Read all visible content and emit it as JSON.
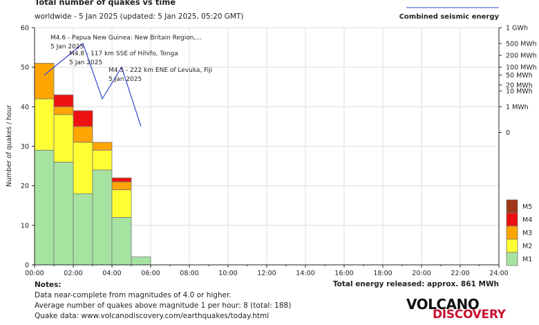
{
  "title": "Total number of quakes vs time",
  "subtitle": "worldwide -  5 Jan 2025 (updated: 5 Jan 2025, 05:20 GMT)",
  "legend_line_label": "Combined seismic energy",
  "ylabel": "Number of quakes / hour",
  "colors": {
    "M1": "#a6e3a1",
    "M2": "#ffff33",
    "M3": "#ffa500",
    "M4": "#ee1111",
    "M5": "#a0361a",
    "energy_line": "#3344cc",
    "grid": "#dddddd"
  },
  "chart_data": {
    "type": "bar",
    "stacked": true,
    "x_tick_labels": [
      "00:00",
      "02:00",
      "04:00",
      "06:00",
      "08:00",
      "10:00",
      "12:00",
      "14:00",
      "16:00",
      "18:00",
      "20:00",
      "22:00",
      "24:00"
    ],
    "xlim": [
      0,
      24
    ],
    "ylim": [
      0,
      60
    ],
    "y_ticks": [
      0,
      10,
      20,
      30,
      40,
      50,
      60
    ],
    "bar_width_hours": 1,
    "bars": [
      {
        "hour": 0,
        "M1": 29,
        "M2": 13,
        "M3": 9,
        "M4": 0,
        "M5": 0
      },
      {
        "hour": 1,
        "M1": 26,
        "M2": 12,
        "M3": 2,
        "M4": 3,
        "M5": 0
      },
      {
        "hour": 2,
        "M1": 18,
        "M2": 13,
        "M3": 4,
        "M4": 4,
        "M5": 0
      },
      {
        "hour": 3,
        "M1": 24,
        "M2": 5,
        "M3": 2,
        "M4": 0,
        "M5": 0
      },
      {
        "hour": 4,
        "M1": 12,
        "M2": 7,
        "M3": 2,
        "M4": 1,
        "M5": 0
      },
      {
        "hour": 5,
        "M1": 2,
        "M2": 0,
        "M3": 0,
        "M4": 0,
        "M5": 0
      }
    ],
    "magnitude_legend": [
      "M5",
      "M4",
      "M3",
      "M2",
      "M1"
    ],
    "energy_axis_labels": [
      "1 GWh",
      "500 MWh",
      "200 MWh",
      "100 MWh",
      "50 MWh",
      "20 MWh",
      "10 MWh",
      "1 MWh",
      "0"
    ],
    "energy_series": [
      {
        "hour": 0.5,
        "y_on_count_axis": 48
      },
      {
        "hour": 2.5,
        "y_on_count_axis": 56
      },
      {
        "hour": 3.5,
        "y_on_count_axis": 42
      },
      {
        "hour": 4.5,
        "y_on_count_axis": 50
      },
      {
        "hour": 5.5,
        "y_on_count_axis": 35
      }
    ],
    "annotations": [
      {
        "text": "M4.6 - Papua New Guinea: New Britain Region,...",
        "date": "5 Jan 2025"
      },
      {
        "text": "M4.8 - 117 km SSE of Hihifo, Tonga",
        "date": "5 Jan 2025"
      },
      {
        "text": "M4.5 - 222 km ENE of Levuka, Fiji",
        "date": "5 Jan 2025"
      }
    ]
  },
  "footer": {
    "notes_heading": "Notes:",
    "note1": "Data near-complete from magnitudes of 4.0 or higher.",
    "note2": "Average number of quakes above magnitude 1 per hour: 8 (total: 188)",
    "note3": "Quake data: www.volcanodiscovery.com/earthquakes/today.html",
    "total_energy": "Total energy released: approx. 861 MWh"
  },
  "logo": {
    "line1": "VOLCANO",
    "line2": "DISCOVERY"
  }
}
